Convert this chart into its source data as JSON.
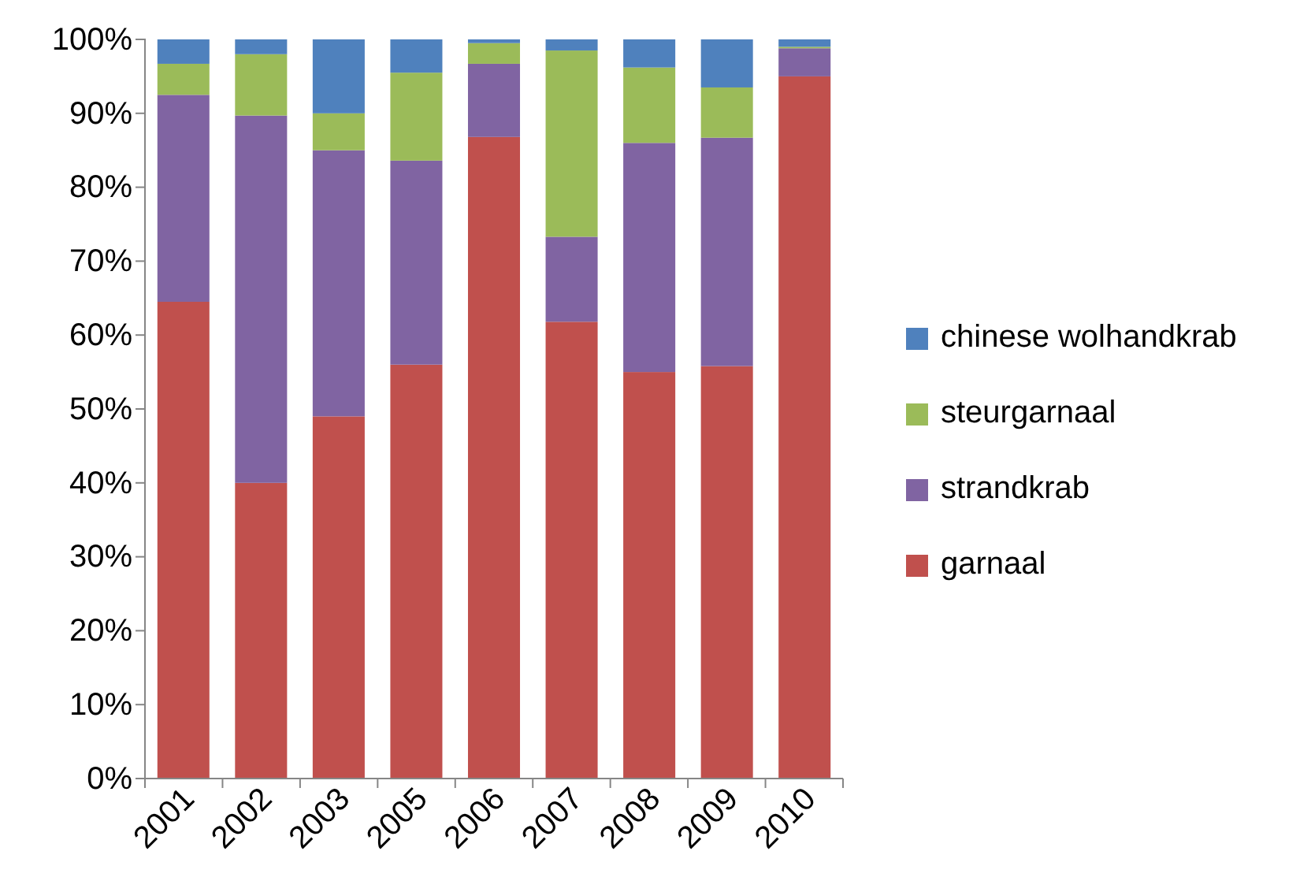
{
  "chart_data": {
    "type": "bar",
    "stacked": true,
    "categories": [
      "2001",
      "2002",
      "2003",
      "2005",
      "2006",
      "2007",
      "2008",
      "2009",
      "2010"
    ],
    "series": [
      {
        "name": "garnaal",
        "color": "#c0504d",
        "values": [
          64.5,
          40,
          49,
          56,
          86.8,
          61.8,
          55,
          55.8,
          95
        ]
      },
      {
        "name": "strandkrab",
        "color": "#8064a2",
        "values": [
          28,
          49.7,
          36,
          27.6,
          9.9,
          11.5,
          31,
          30.9,
          3.8
        ]
      },
      {
        "name": "steurgarnaal",
        "color": "#9bbb59",
        "values": [
          4.2,
          8.3,
          5,
          11.9,
          2.8,
          25.2,
          10.2,
          6.8,
          0.2
        ]
      },
      {
        "name": "chinese wolhandkrab",
        "color": "#4f81bd",
        "values": [
          3.3,
          2,
          10,
          4.5,
          0.5,
          1.5,
          3.8,
          6.5,
          1
        ]
      }
    ],
    "ylim": [
      0,
      100
    ],
    "yticks": [
      {
        "value": 0,
        "label": "0%"
      },
      {
        "value": 10,
        "label": "10%"
      },
      {
        "value": 20,
        "label": "20%"
      },
      {
        "value": 30,
        "label": "30%"
      },
      {
        "value": 40,
        "label": "40%"
      },
      {
        "value": 50,
        "label": "50%"
      },
      {
        "value": 60,
        "label": "60%"
      },
      {
        "value": 70,
        "label": "70%"
      },
      {
        "value": 80,
        "label": "80%"
      },
      {
        "value": 90,
        "label": "90%"
      },
      {
        "value": 100,
        "label": "100%"
      }
    ],
    "grid": false,
    "legend": "right"
  }
}
